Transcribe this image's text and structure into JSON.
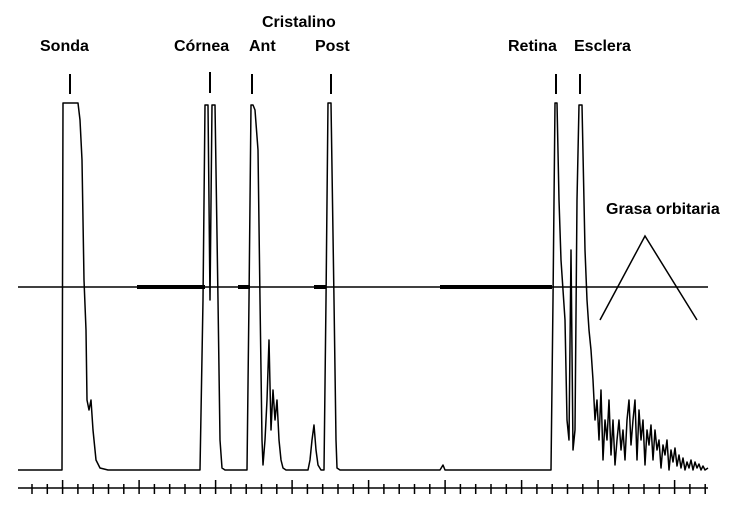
{
  "labels": {
    "probe": "Sonda",
    "cornea": "Córnea",
    "lens": "Cristalino",
    "lens_anterior": "Ant",
    "lens_posterior": "Post",
    "retina": "Retina",
    "sclera": "Esclera",
    "orbital_fat": "Grasa orbitaria"
  },
  "colors": {
    "trace": "#000000",
    "background": "#ffffff"
  }
}
